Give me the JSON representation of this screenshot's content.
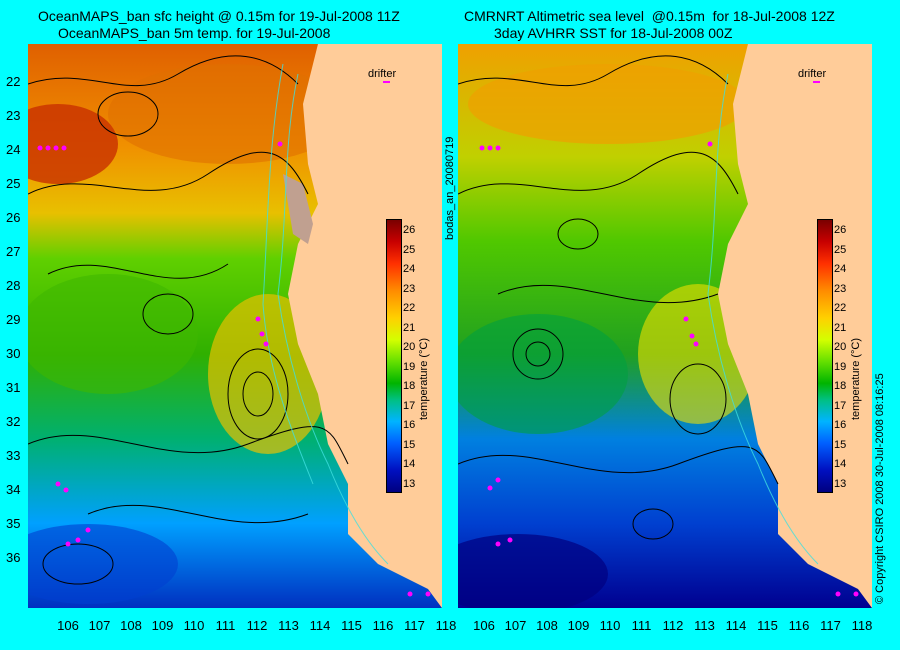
{
  "left_panel": {
    "title_line1": "OceanMAPS_ban sfc height @ 0.15m for 19-Jul-2008 11Z",
    "title_line2": "OceanMAPS_ban 5m temp. for 19-Jul-2008",
    "drifter_label": "drifter"
  },
  "right_panel": {
    "title_line1": "CMRNRT Altimetric sea level  @0.15m  for 18-Jul-2008 12Z",
    "title_line2": "3day AVHRR SST for 18-Jul-2008 00Z",
    "drifter_label": "drifter"
  },
  "map_axes": {
    "lat_labels": [
      "22",
      "23",
      "24",
      "25",
      "26",
      "27",
      "28",
      "29",
      "30",
      "31",
      "32",
      "33",
      "34",
      "35",
      "36"
    ],
    "lon_labels": [
      "106",
      "107",
      "108",
      "109",
      "110",
      "111",
      "112",
      "113",
      "114",
      "115",
      "116",
      "117",
      "118"
    ]
  },
  "colorbar": {
    "label": "temperature (°C)",
    "ticks": [
      "26",
      "25",
      "24",
      "23",
      "22",
      "21",
      "20",
      "19",
      "18",
      "17",
      "16",
      "15",
      "14",
      "13"
    ]
  },
  "side_text": {
    "middle": "bodas_an_20080719",
    "right": "© Copyright CSIRO 2008   30-Jul-2008 08:16:25"
  },
  "colors": {
    "background": "#00ffff",
    "land": "#ffcc99",
    "drifter": "#ff00ff"
  }
}
